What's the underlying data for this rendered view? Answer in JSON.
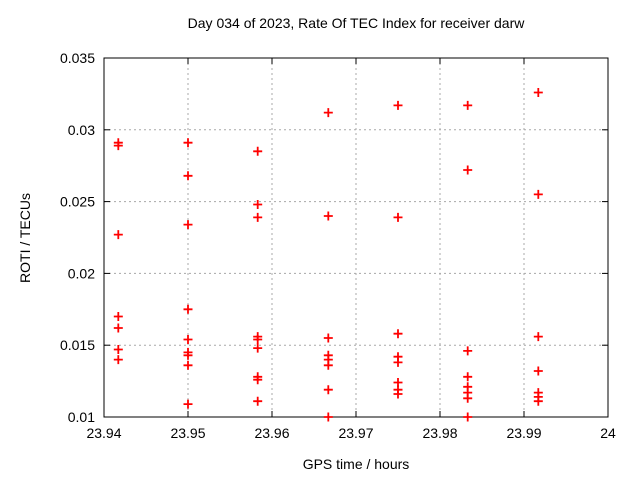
{
  "chart_data": {
    "type": "scatter",
    "title": "Day 034 of 2023, Rate Of TEC Index for receiver darw",
    "xlabel": "GPS time / hours",
    "ylabel": "ROTI / TECUs",
    "xlim": [
      23.94,
      24
    ],
    "ylim": [
      0.01,
      0.035
    ],
    "xtick_values": [
      23.94,
      23.95,
      23.96,
      23.97,
      23.98,
      23.99,
      24
    ],
    "xtick_labels": [
      "23.94",
      "23.95",
      "23.96",
      "23.97",
      "23.98",
      "23.99",
      "24"
    ],
    "ytick_values": [
      0.01,
      0.015,
      0.02,
      0.025,
      0.03,
      0.035
    ],
    "ytick_labels": [
      "0.01",
      "0.015",
      "0.02",
      "0.025",
      "0.03",
      "0.035"
    ],
    "grid": true,
    "legend": false,
    "colors": {
      "marker": "#ff0000",
      "grid": "#a8a8a8",
      "border": "#000000",
      "text": "#000000",
      "background": "#ffffff"
    },
    "series": [
      {
        "name": "ROTI",
        "marker": "plus",
        "color": "#ff0000",
        "points": [
          [
            23.9417,
            0.0291
          ],
          [
            23.9417,
            0.0289
          ],
          [
            23.9417,
            0.0227
          ],
          [
            23.9417,
            0.017
          ],
          [
            23.9417,
            0.0162
          ],
          [
            23.9417,
            0.0147
          ],
          [
            23.9417,
            0.014
          ],
          [
            23.95,
            0.0291
          ],
          [
            23.95,
            0.0268
          ],
          [
            23.95,
            0.0234
          ],
          [
            23.95,
            0.0175
          ],
          [
            23.95,
            0.0154
          ],
          [
            23.95,
            0.0145
          ],
          [
            23.95,
            0.0143
          ],
          [
            23.95,
            0.0136
          ],
          [
            23.95,
            0.0109
          ],
          [
            23.9583,
            0.0285
          ],
          [
            23.9583,
            0.0248
          ],
          [
            23.9583,
            0.0239
          ],
          [
            23.9583,
            0.0156
          ],
          [
            23.9583,
            0.0154
          ],
          [
            23.9583,
            0.0148
          ],
          [
            23.9583,
            0.0128
          ],
          [
            23.9583,
            0.0126
          ],
          [
            23.9583,
            0.0111
          ],
          [
            23.9667,
            0.0312
          ],
          [
            23.9667,
            0.024
          ],
          [
            23.9667,
            0.0155
          ],
          [
            23.9667,
            0.0143
          ],
          [
            23.9667,
            0.014
          ],
          [
            23.9667,
            0.0136
          ],
          [
            23.9667,
            0.0119
          ],
          [
            23.9667,
            0.01
          ],
          [
            23.975,
            0.0317
          ],
          [
            23.975,
            0.0239
          ],
          [
            23.975,
            0.0158
          ],
          [
            23.975,
            0.0142
          ],
          [
            23.975,
            0.0138
          ],
          [
            23.975,
            0.0124
          ],
          [
            23.975,
            0.0119
          ],
          [
            23.975,
            0.0116
          ],
          [
            23.9833,
            0.0317
          ],
          [
            23.9833,
            0.0272
          ],
          [
            23.9833,
            0.0146
          ],
          [
            23.9833,
            0.0128
          ],
          [
            23.9833,
            0.0121
          ],
          [
            23.9833,
            0.0117
          ],
          [
            23.9833,
            0.0113
          ],
          [
            23.9833,
            0.01
          ],
          [
            23.9917,
            0.0326
          ],
          [
            23.9917,
            0.0255
          ],
          [
            23.9917,
            0.0156
          ],
          [
            23.9917,
            0.0132
          ],
          [
            23.9917,
            0.0117
          ],
          [
            23.9917,
            0.0114
          ],
          [
            23.9917,
            0.0111
          ]
        ]
      }
    ]
  }
}
